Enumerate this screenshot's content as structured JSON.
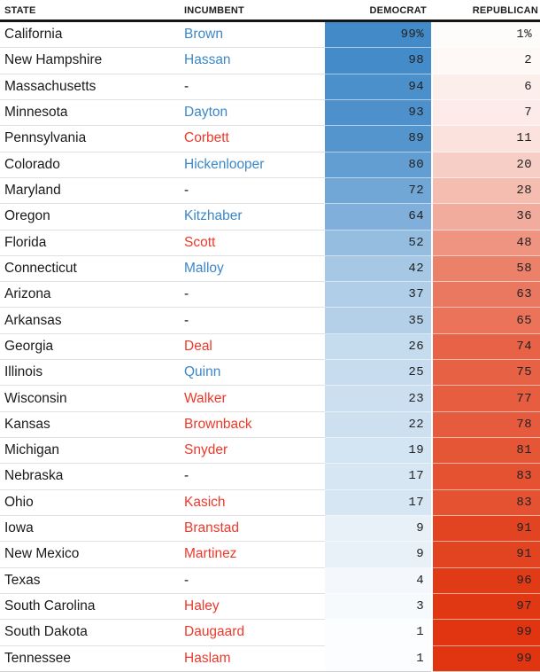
{
  "colors": {
    "dem_full": "#4189c8",
    "rep_full": "#e0330e",
    "dem_text": "#3c87c8",
    "rep_text": "#ed392b",
    "body_text": "#1a1a1a",
    "header_text": "#222222"
  },
  "chart_data": {
    "type": "table",
    "columns": [
      "STATE",
      "INCUMBENT",
      "DEMOCRAT",
      "REPUBLICAN"
    ],
    "value_unit": "%",
    "layout_hints": {
      "democrat_cell_ramp": "white to dem_full by dem_pct",
      "republican_cell_ramp": "white to rep_full by rep_pct",
      "numbers_right_aligned": true
    },
    "rows": [
      {
        "state": "California",
        "incumbent": "Brown",
        "incumbent_party": "dem",
        "dem_pct": 99,
        "rep_pct": 1,
        "dem_label": "99%",
        "rep_label": "1%"
      },
      {
        "state": "New Hampshire",
        "incumbent": "Hassan",
        "incumbent_party": "dem",
        "dem_pct": 98,
        "rep_pct": 2,
        "dem_label": "98",
        "rep_label": "2"
      },
      {
        "state": "Massachusetts",
        "incumbent": "-",
        "incumbent_party": "none",
        "dem_pct": 94,
        "rep_pct": 6,
        "dem_label": "94",
        "rep_label": "6"
      },
      {
        "state": "Minnesota",
        "incumbent": "Dayton",
        "incumbent_party": "dem",
        "dem_pct": 93,
        "rep_pct": 7,
        "dem_label": "93",
        "rep_label": "7"
      },
      {
        "state": "Pennsylvania",
        "incumbent": "Corbett",
        "incumbent_party": "rep",
        "dem_pct": 89,
        "rep_pct": 11,
        "dem_label": "89",
        "rep_label": "11"
      },
      {
        "state": "Colorado",
        "incumbent": "Hickenlooper",
        "incumbent_party": "dem",
        "dem_pct": 80,
        "rep_pct": 20,
        "dem_label": "80",
        "rep_label": "20"
      },
      {
        "state": "Maryland",
        "incumbent": "-",
        "incumbent_party": "none",
        "dem_pct": 72,
        "rep_pct": 28,
        "dem_label": "72",
        "rep_label": "28"
      },
      {
        "state": "Oregon",
        "incumbent": "Kitzhaber",
        "incumbent_party": "dem",
        "dem_pct": 64,
        "rep_pct": 36,
        "dem_label": "64",
        "rep_label": "36"
      },
      {
        "state": "Florida",
        "incumbent": "Scott",
        "incumbent_party": "rep",
        "dem_pct": 52,
        "rep_pct": 48,
        "dem_label": "52",
        "rep_label": "48"
      },
      {
        "state": "Connecticut",
        "incumbent": "Malloy",
        "incumbent_party": "dem",
        "dem_pct": 42,
        "rep_pct": 58,
        "dem_label": "42",
        "rep_label": "58"
      },
      {
        "state": "Arizona",
        "incumbent": "-",
        "incumbent_party": "none",
        "dem_pct": 37,
        "rep_pct": 63,
        "dem_label": "37",
        "rep_label": "63"
      },
      {
        "state": "Arkansas",
        "incumbent": "-",
        "incumbent_party": "none",
        "dem_pct": 35,
        "rep_pct": 65,
        "dem_label": "35",
        "rep_label": "65"
      },
      {
        "state": "Georgia",
        "incumbent": "Deal",
        "incumbent_party": "rep",
        "dem_pct": 26,
        "rep_pct": 74,
        "dem_label": "26",
        "rep_label": "74"
      },
      {
        "state": "Illinois",
        "incumbent": "Quinn",
        "incumbent_party": "dem",
        "dem_pct": 25,
        "rep_pct": 75,
        "dem_label": "25",
        "rep_label": "75"
      },
      {
        "state": "Wisconsin",
        "incumbent": "Walker",
        "incumbent_party": "rep",
        "dem_pct": 23,
        "rep_pct": 77,
        "dem_label": "23",
        "rep_label": "77"
      },
      {
        "state": "Kansas",
        "incumbent": "Brownback",
        "incumbent_party": "rep",
        "dem_pct": 22,
        "rep_pct": 78,
        "dem_label": "22",
        "rep_label": "78"
      },
      {
        "state": "Michigan",
        "incumbent": "Snyder",
        "incumbent_party": "rep",
        "dem_pct": 19,
        "rep_pct": 81,
        "dem_label": "19",
        "rep_label": "81"
      },
      {
        "state": "Nebraska",
        "incumbent": "-",
        "incumbent_party": "none",
        "dem_pct": 17,
        "rep_pct": 83,
        "dem_label": "17",
        "rep_label": "83"
      },
      {
        "state": "Ohio",
        "incumbent": "Kasich",
        "incumbent_party": "rep",
        "dem_pct": 17,
        "rep_pct": 83,
        "dem_label": "17",
        "rep_label": "83"
      },
      {
        "state": "Iowa",
        "incumbent": "Branstad",
        "incumbent_party": "rep",
        "dem_pct": 9,
        "rep_pct": 91,
        "dem_label": "9",
        "rep_label": "91"
      },
      {
        "state": "New Mexico",
        "incumbent": "Martinez",
        "incumbent_party": "rep",
        "dem_pct": 9,
        "rep_pct": 91,
        "dem_label": "9",
        "rep_label": "91"
      },
      {
        "state": "Texas",
        "incumbent": "-",
        "incumbent_party": "none",
        "dem_pct": 4,
        "rep_pct": 96,
        "dem_label": "4",
        "rep_label": "96"
      },
      {
        "state": "South Carolina",
        "incumbent": "Haley",
        "incumbent_party": "rep",
        "dem_pct": 3,
        "rep_pct": 97,
        "dem_label": "3",
        "rep_label": "97"
      },
      {
        "state": "South Dakota",
        "incumbent": "Daugaard",
        "incumbent_party": "rep",
        "dem_pct": 1,
        "rep_pct": 99,
        "dem_label": "1",
        "rep_label": "99"
      },
      {
        "state": "Tennessee",
        "incumbent": "Haslam",
        "incumbent_party": "rep",
        "dem_pct": 1,
        "rep_pct": 99,
        "dem_label": "1",
        "rep_label": "99"
      }
    ]
  }
}
